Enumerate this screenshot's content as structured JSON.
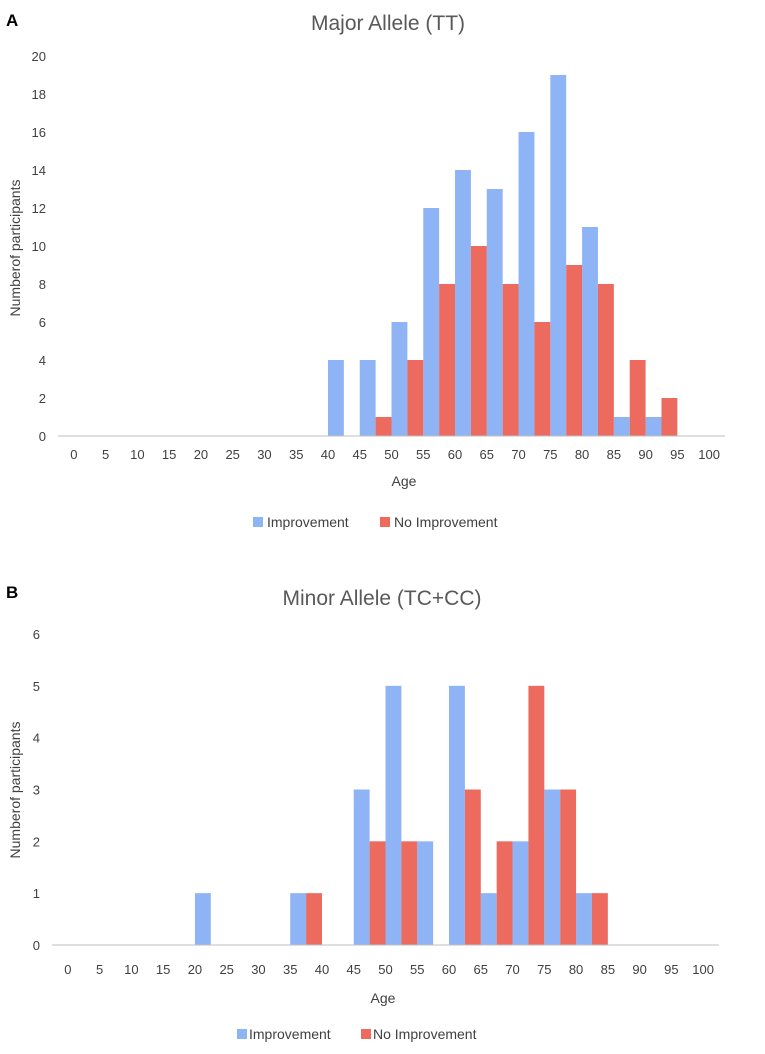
{
  "colors": {
    "improvement": "#8FB4F5",
    "no_improvement": "#EC6A5E",
    "axis": "#BFBFBF",
    "text": "#404040"
  },
  "chart_data": [
    {
      "panel_label": "A",
      "type": "bar",
      "title": "Major Allele (TT)",
      "xlabel": "Age",
      "ylabel": "Numberof participants",
      "ylim": [
        0,
        20
      ],
      "ytick_step": 2,
      "categories": [
        "0",
        "5",
        "10",
        "15",
        "20",
        "25",
        "30",
        "35",
        "40",
        "45",
        "50",
        "55",
        "60",
        "65",
        "70",
        "75",
        "80",
        "85",
        "90",
        "95",
        "100"
      ],
      "series": [
        {
          "name": "Improvement",
          "values": [
            0,
            0,
            0,
            0,
            0,
            0,
            0,
            0,
            4,
            4,
            6,
            12,
            14,
            13,
            16,
            19,
            11,
            1,
            1,
            0,
            0
          ]
        },
        {
          "name": "No Improvement",
          "values": [
            0,
            0,
            0,
            0,
            0,
            0,
            0,
            0,
            0,
            1,
            4,
            8,
            10,
            8,
            6,
            9,
            8,
            4,
            2,
            0,
            0
          ]
        }
      ],
      "legend": [
        "Improvement",
        "No Improvement"
      ]
    },
    {
      "panel_label": "B",
      "type": "bar",
      "title": "Minor Allele (TC+CC)",
      "xlabel": "Age",
      "ylabel": "Numberof participants",
      "ylim": [
        0,
        6
      ],
      "ytick_step": 1,
      "categories": [
        "0",
        "5",
        "10",
        "15",
        "20",
        "25",
        "30",
        "35",
        "40",
        "45",
        "50",
        "55",
        "60",
        "65",
        "70",
        "75",
        "80",
        "85",
        "90",
        "95",
        "100"
      ],
      "series": [
        {
          "name": "Improvement",
          "values": [
            0,
            0,
            0,
            0,
            1,
            0,
            0,
            1,
            0,
            3,
            5,
            2,
            5,
            1,
            2,
            3,
            1,
            0,
            0,
            0,
            0
          ]
        },
        {
          "name": "No Improvement",
          "values": [
            0,
            0,
            0,
            0,
            0,
            0,
            0,
            1,
            0,
            2,
            2,
            0,
            3,
            2,
            5,
            3,
            1,
            0,
            0,
            0,
            0
          ]
        }
      ],
      "legend": [
        "Improvement",
        "No Improvement"
      ]
    }
  ]
}
